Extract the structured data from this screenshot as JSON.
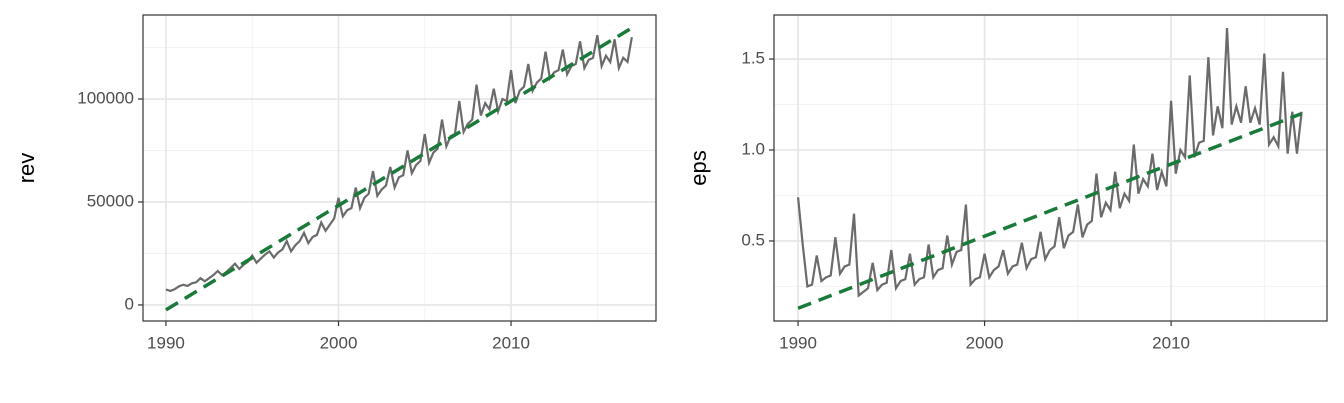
{
  "chart_data": [
    {
      "type": "line",
      "ylabel": "rev",
      "xlim": [
        1988.67,
        2018.4
      ],
      "xticks": [
        1990,
        2000,
        2010
      ],
      "xminor": [
        1995,
        2005,
        2015
      ],
      "ylim": [
        -7800,
        140800
      ],
      "yticks": [
        0,
        50000,
        100000
      ],
      "yminor": [
        25000,
        75000,
        125000
      ],
      "grid": true,
      "series": [
        {
          "color": "#6b6b6b",
          "dash": false,
          "x": [
            1990,
            1990.25,
            1990.5,
            1990.75,
            1991,
            1991.25,
            1991.5,
            1991.75,
            1992,
            1992.25,
            1992.5,
            1992.75,
            1993,
            1993.25,
            1993.5,
            1993.75,
            1994,
            1994.25,
            1994.5,
            1994.75,
            1995,
            1995.25,
            1995.5,
            1995.75,
            1996,
            1996.25,
            1996.5,
            1996.75,
            1997,
            1997.25,
            1997.5,
            1997.75,
            1998,
            1998.25,
            1998.5,
            1998.75,
            1999,
            1999.25,
            1999.5,
            1999.75,
            2000,
            2000.25,
            2000.5,
            2000.75,
            2001,
            2001.25,
            2001.5,
            2001.75,
            2002,
            2002.25,
            2002.5,
            2002.75,
            2003,
            2003.25,
            2003.5,
            2003.75,
            2004,
            2004.25,
            2004.5,
            2004.75,
            2005,
            2005.25,
            2005.5,
            2005.75,
            2006,
            2006.25,
            2006.5,
            2006.75,
            2007,
            2007.25,
            2007.5,
            2007.75,
            2008,
            2008.25,
            2008.5,
            2008.75,
            2009,
            2009.25,
            2009.5,
            2009.75,
            2010,
            2010.25,
            2010.5,
            2010.75,
            2011,
            2011.25,
            2011.5,
            2011.75,
            2012,
            2012.25,
            2012.5,
            2012.75,
            2013,
            2013.25,
            2013.5,
            2013.75,
            2014,
            2014.25,
            2014.5,
            2014.75,
            2015,
            2015.25,
            2015.5,
            2015.75,
            2016,
            2016.25,
            2016.5,
            2016.75,
            2017
          ],
          "values": [
            7500,
            6800,
            7600,
            9000,
            9800,
            9200,
            10500,
            11000,
            13000,
            11500,
            13000,
            14500,
            16500,
            14500,
            16000,
            18000,
            20000,
            17500,
            19500,
            21000,
            24000,
            20500,
            22500,
            24500,
            26000,
            23000,
            25500,
            27000,
            31000,
            26000,
            29000,
            31000,
            35000,
            30000,
            33000,
            34000,
            40000,
            36000,
            39000,
            42000,
            52000,
            43000,
            46000,
            47000,
            57000,
            47000,
            52000,
            54000,
            65000,
            53000,
            56000,
            58000,
            67000,
            57000,
            62000,
            63000,
            75000,
            64000,
            68000,
            70000,
            83000,
            69000,
            74000,
            76000,
            90000,
            77000,
            82000,
            83000,
            99000,
            84000,
            88000,
            90000,
            107000,
            92000,
            98000,
            95000,
            105000,
            94000,
            100000,
            99000,
            114000,
            98000,
            104000,
            106000,
            117000,
            104000,
            108000,
            110000,
            123000,
            110000,
            113000,
            114000,
            124000,
            112000,
            116000,
            117000,
            128000,
            115000,
            119000,
            120000,
            131000,
            116000,
            121000,
            118000,
            129000,
            115000,
            120000,
            118000,
            130000
          ]
        },
        {
          "color": "#1a7a3a",
          "dash": true,
          "x": [
            1990,
            2017
          ],
          "values": [
            -2400,
            134500
          ]
        }
      ]
    },
    {
      "type": "line",
      "ylabel": "eps",
      "xlim": [
        1988.71,
        2018.36
      ],
      "xticks": [
        1990,
        2000,
        2010
      ],
      "xminor": [
        1995,
        2005,
        2015
      ],
      "ylim": [
        0.06,
        1.742
      ],
      "yticks": [
        0.5,
        {
          "value": 1.0,
          "label": "1.0"
        },
        1.5
      ],
      "yminor": [
        0.25,
        0.75,
        1.25
      ],
      "grid": true,
      "series": [
        {
          "color": "#6b6b6b",
          "dash": false,
          "x": [
            1990,
            1990.25,
            1990.5,
            1990.75,
            1991,
            1991.25,
            1991.5,
            1991.75,
            1992,
            1992.25,
            1992.5,
            1992.75,
            1993,
            1993.25,
            1993.5,
            1993.75,
            1994,
            1994.25,
            1994.5,
            1994.75,
            1995,
            1995.25,
            1995.5,
            1995.75,
            1996,
            1996.25,
            1996.5,
            1996.75,
            1997,
            1997.25,
            1997.5,
            1997.75,
            1998,
            1998.25,
            1998.5,
            1998.75,
            1999,
            1999.25,
            1999.5,
            1999.75,
            2000,
            2000.25,
            2000.5,
            2000.75,
            2001,
            2001.25,
            2001.5,
            2001.75,
            2002,
            2002.25,
            2002.5,
            2002.75,
            2003,
            2003.25,
            2003.5,
            2003.75,
            2004,
            2004.25,
            2004.5,
            2004.75,
            2005,
            2005.25,
            2005.5,
            2005.75,
            2006,
            2006.25,
            2006.5,
            2006.75,
            2007,
            2007.25,
            2007.5,
            2007.75,
            2008,
            2008.25,
            2008.5,
            2008.75,
            2009,
            2009.25,
            2009.5,
            2009.75,
            2010,
            2010.25,
            2010.5,
            2010.75,
            2011,
            2011.25,
            2011.5,
            2011.75,
            2012,
            2012.25,
            2012.5,
            2012.75,
            2013,
            2013.25,
            2013.5,
            2013.75,
            2014,
            2014.25,
            2014.5,
            2014.75,
            2015,
            2015.25,
            2015.5,
            2015.75,
            2016,
            2016.25,
            2016.5,
            2016.75,
            2017
          ],
          "values": [
            0.74,
            0.48,
            0.25,
            0.26,
            0.42,
            0.28,
            0.3,
            0.31,
            0.52,
            0.32,
            0.36,
            0.37,
            0.65,
            0.2,
            0.22,
            0.24,
            0.38,
            0.23,
            0.26,
            0.27,
            0.45,
            0.24,
            0.28,
            0.29,
            0.43,
            0.26,
            0.29,
            0.3,
            0.48,
            0.3,
            0.34,
            0.35,
            0.53,
            0.37,
            0.44,
            0.45,
            0.7,
            0.26,
            0.29,
            0.3,
            0.43,
            0.3,
            0.34,
            0.36,
            0.45,
            0.32,
            0.36,
            0.37,
            0.49,
            0.35,
            0.4,
            0.41,
            0.55,
            0.4,
            0.45,
            0.47,
            0.63,
            0.46,
            0.53,
            0.55,
            0.7,
            0.52,
            0.59,
            0.61,
            0.87,
            0.63,
            0.71,
            0.67,
            0.88,
            0.68,
            0.76,
            0.72,
            1.03,
            0.76,
            0.84,
            0.8,
            0.98,
            0.78,
            0.88,
            0.8,
            1.27,
            0.87,
            1.0,
            0.96,
            1.41,
            0.96,
            1.04,
            1.05,
            1.51,
            1.08,
            1.24,
            1.12,
            1.67,
            1.14,
            1.24,
            1.15,
            1.35,
            1.15,
            1.23,
            1.14,
            1.53,
            1.03,
            1.07,
            1.02,
            1.43,
            0.98,
            1.21,
            0.98,
            1.21
          ]
        },
        {
          "color": "#1a7a3a",
          "dash": true,
          "x": [
            1990,
            2017
          ],
          "values": [
            0.13,
            1.2
          ]
        }
      ]
    }
  ]
}
